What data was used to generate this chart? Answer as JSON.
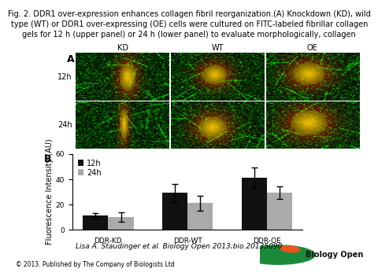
{
  "title_line1": "Fig. 2. DDR1 over-expression enhances collagen fibril reorganization.(A) Knockdown (KD), wild",
  "title_line2": "type (WT) or DDR1 over-expressing (OE) cells were cultured on FITC-labeled fibrillar collagen",
  "title_line3": "gels for 12 h (upper panel) or 24 h (lower panel) to evaluate morphologically, collagen",
  "panel_A_label": "A",
  "panel_B_label": "B",
  "row_labels": [
    "12h",
    "24h"
  ],
  "col_labels": [
    "KD",
    "WT",
    "OE"
  ],
  "bar_categories": [
    "DDR-KD",
    "DDR-WT",
    "DDR-OE"
  ],
  "bar_12h_values": [
    11,
    29,
    41
  ],
  "bar_24h_values": [
    10,
    21,
    29
  ],
  "bar_12h_errors": [
    2,
    7,
    8
  ],
  "bar_24h_errors": [
    4,
    6,
    5
  ],
  "bar_12h_color": "#111111",
  "bar_24h_color": "#aaaaaa",
  "ylabel": "Fluorescence Intensity (AU)",
  "ylim": [
    0,
    60
  ],
  "yticks": [
    0,
    20,
    40,
    60
  ],
  "legend_12h": "12h",
  "legend_24h": "24h",
  "citation": "Lisa A. Staudinger et al. Biology Open 2013;bio.20135090",
  "copyright": "© 2013. Published by The Company of Biologists Ltd",
  "bg_color": "#ffffff",
  "title_fontsize": 7.0,
  "axis_fontsize": 7.0,
  "tick_fontsize": 6.5,
  "legend_fontsize": 7.0,
  "citation_fontsize": 6.5,
  "copyright_fontsize": 5.5,
  "bar_width": 0.32
}
